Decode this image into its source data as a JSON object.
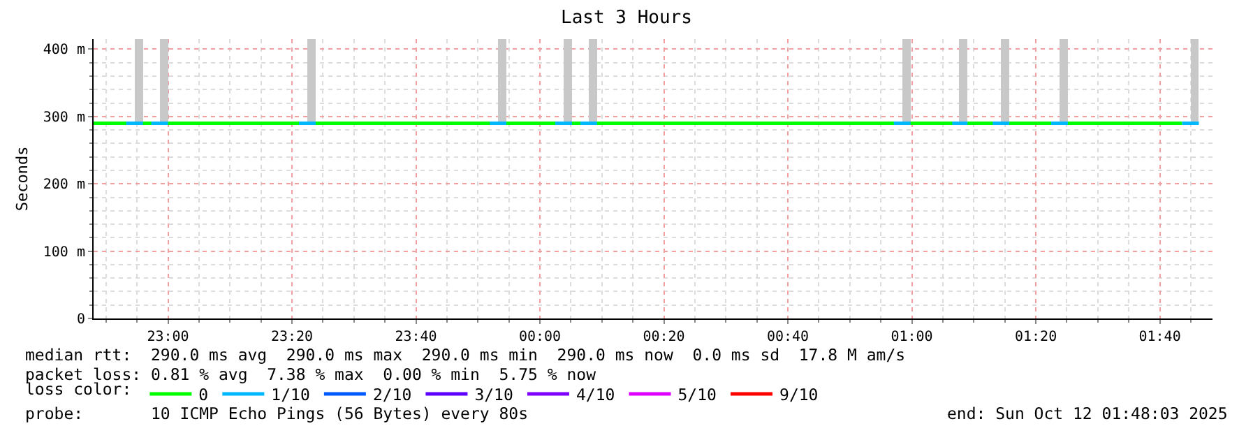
{
  "chart_data": {
    "type": "line",
    "title": "Last 3 Hours",
    "ylabel": "Seconds",
    "legend_title": "loss color:",
    "legend": "bottom",
    "grid": true,
    "xlim": [
      "2025-10-11T22:48:00",
      "2025-10-12T01:48:30"
    ],
    "xticks": [
      {
        "value": "2025-10-11T23:00:00",
        "label": "23:00"
      },
      {
        "value": "2025-10-11T23:20:00",
        "label": "23:20"
      },
      {
        "value": "2025-10-11T23:40:00",
        "label": "23:40"
      },
      {
        "value": "2025-10-12T00:00:00",
        "label": "00:00"
      },
      {
        "value": "2025-10-12T00:20:00",
        "label": "00:20"
      },
      {
        "value": "2025-10-12T00:40:00",
        "label": "00:40"
      },
      {
        "value": "2025-10-12T01:00:00",
        "label": "01:00"
      },
      {
        "value": "2025-10-12T01:20:00",
        "label": "01:20"
      },
      {
        "value": "2025-10-12T01:40:00",
        "label": "01:40"
      }
    ],
    "ylim": [
      0,
      415
    ],
    "yticks": [
      0,
      {
        "value": 100,
        "label": "100 m"
      },
      {
        "value": 200,
        "label": "200 m"
      },
      {
        "value": 300,
        "label": "300 m"
      },
      {
        "value": 400,
        "label": "400 m"
      }
    ],
    "series": [
      {
        "type": "bar",
        "color": "#c8c8c8",
        "x": [
          "2025-10-11T22:55:18",
          "2025-10-11T22:59:20",
          "2025-10-11T23:23:09",
          "2025-10-11T23:53:56",
          "2025-10-12T00:04:30",
          "2025-10-12T00:08:33",
          "2025-10-12T00:59:07",
          "2025-10-12T01:08:19",
          "2025-10-12T01:15:04",
          "2025-10-12T01:24:30",
          "2025-10-12T01:45:38"
        ],
        "base": [
          290,
          290,
          290,
          290,
          290,
          290,
          290,
          290,
          290,
          290,
          290
        ],
        "values": [
          125,
          125,
          125,
          125,
          125,
          125,
          125,
          125,
          125,
          125,
          125
        ]
      },
      {
        "name": "0",
        "color": "#00ff00",
        "x": [
          "2025-10-11T22:48:00",
          "2025-10-12T01:43:36"
        ],
        "values": [
          290,
          290
        ]
      },
      {
        "name": "1/10",
        "color": "#00b8ff",
        "x": [
          "2025-10-11T22:53:16",
          "2025-10-11T22:55:58",
          null,
          "2025-10-11T22:57:18",
          "2025-10-11T23:00:00",
          null,
          "2025-10-11T23:21:07",
          "2025-10-11T23:23:49",
          null,
          "2025-10-11T23:51:55",
          "2025-10-11T23:54:36",
          null,
          "2025-10-12T00:02:28",
          "2025-10-12T00:05:10",
          null,
          "2025-10-12T00:06:31",
          "2025-10-12T00:09:13",
          null,
          "2025-10-12T00:57:05",
          "2025-10-12T00:59:47",
          null,
          "2025-10-12T01:06:31",
          "2025-10-12T01:08:59",
          null,
          "2025-10-12T01:13:02",
          "2025-10-12T01:15:44",
          null,
          "2025-10-12T01:22:28",
          "2025-10-12T01:25:10",
          null,
          "2025-10-12T01:43:36",
          "2025-10-12T01:46:18"
        ],
        "values": [
          290,
          290,
          null,
          290,
          290,
          null,
          290,
          290,
          null,
          290,
          290,
          null,
          290,
          290,
          null,
          290,
          290,
          null,
          290,
          290,
          null,
          290,
          290,
          null,
          290,
          290,
          null,
          290,
          290,
          null,
          290,
          290
        ]
      },
      {
        "name": "2/10",
        "color": "#0059ff",
        "values": [
          null
        ]
      },
      {
        "name": "3/10",
        "color": "#5e00ff",
        "values": [
          null
        ]
      },
      {
        "name": "4/10",
        "color": "#7e00ff",
        "values": [
          null
        ]
      },
      {
        "name": "5/10",
        "color": "#dd00ff",
        "values": [
          null
        ]
      },
      {
        "name": "9/10",
        "color": "#ff0000",
        "values": [
          null
        ]
      }
    ],
    "annotations": [
      "median rtt:  290.0 ms avg  290.0 ms max  290.0 ms min  290.0 ms now  0.0 ms sd  17.8 M am/s",
      "packet loss: 0.81 % avg  7.38 % max  0.00 % min  5.75 % now",
      "probe:       10 ICMP Echo Pings (56 Bytes) every 80s",
      "end: Sun Oct 12 01:48:03 2025"
    ]
  }
}
